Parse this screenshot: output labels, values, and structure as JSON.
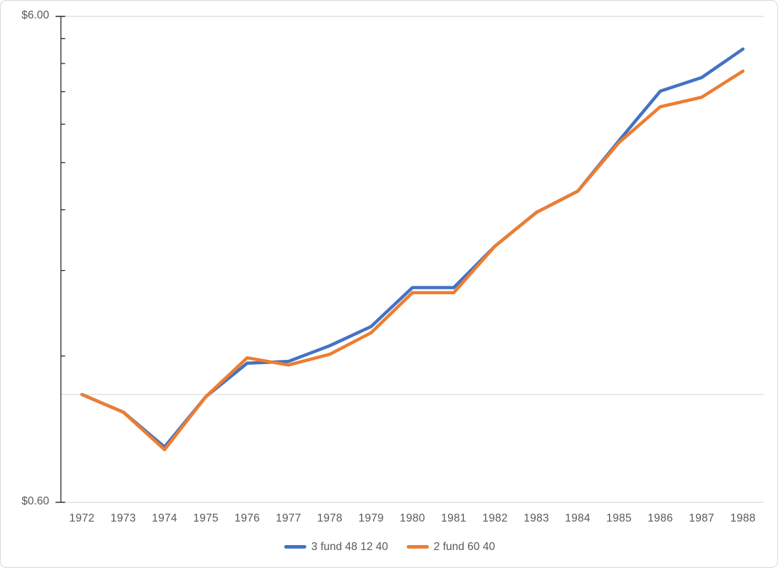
{
  "chart_data": {
    "type": "line",
    "title": "",
    "xlabel": "",
    "ylabel": "",
    "x_categories": [
      "1972",
      "1973",
      "1974",
      "1975",
      "1976",
      "1977",
      "1978",
      "1979",
      "1980",
      "1981",
      "1982",
      "1983",
      "1984",
      "1985",
      "1986",
      "1987",
      "1988"
    ],
    "series": [
      {
        "name": "3 fund 48 12 40",
        "color": "#4472C4",
        "values": [
          1.0,
          0.92,
          0.78,
          0.99,
          1.16,
          1.17,
          1.26,
          1.38,
          1.66,
          1.66,
          2.02,
          2.37,
          2.62,
          3.33,
          4.21,
          4.49,
          5.14
        ]
      },
      {
        "name": "2 fund 60 40",
        "color": "#ED7D31",
        "values": [
          1.0,
          0.92,
          0.77,
          0.99,
          1.19,
          1.15,
          1.21,
          1.34,
          1.62,
          1.62,
          2.02,
          2.37,
          2.62,
          3.3,
          3.91,
          4.09,
          4.63
        ]
      }
    ],
    "y_axis": {
      "scale": "log",
      "min": 0.6,
      "max": 6.0,
      "min_label": "$0.60",
      "max_label": "$6.00",
      "gridline_values": [
        6.0,
        1.0,
        0.6
      ],
      "major_tick_values": [
        6.0,
        0.6
      ],
      "minor_tick_values": [
        5.4,
        4.8,
        4.2,
        3.6,
        3.0,
        2.4,
        1.8,
        1.2
      ]
    },
    "legend_position": "bottom",
    "colors": {
      "axis": "#262626",
      "gridline": "#d9d9d9",
      "label": "#595959",
      "background": "#ffffff",
      "border": "#d9d9d9"
    }
  }
}
